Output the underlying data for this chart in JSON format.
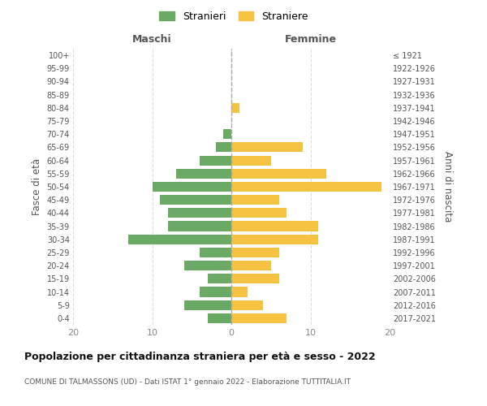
{
  "age_groups": [
    "0-4",
    "5-9",
    "10-14",
    "15-19",
    "20-24",
    "25-29",
    "30-34",
    "35-39",
    "40-44",
    "45-49",
    "50-54",
    "55-59",
    "60-64",
    "65-69",
    "70-74",
    "75-79",
    "80-84",
    "85-89",
    "90-94",
    "95-99",
    "100+"
  ],
  "birth_years": [
    "2017-2021",
    "2012-2016",
    "2007-2011",
    "2002-2006",
    "1997-2001",
    "1992-1996",
    "1987-1991",
    "1982-1986",
    "1977-1981",
    "1972-1976",
    "1967-1971",
    "1962-1966",
    "1957-1961",
    "1952-1956",
    "1947-1951",
    "1942-1946",
    "1937-1941",
    "1932-1936",
    "1927-1931",
    "1922-1926",
    "≤ 1921"
  ],
  "males": [
    3,
    6,
    4,
    3,
    6,
    4,
    13,
    8,
    8,
    9,
    10,
    7,
    4,
    2,
    1,
    0,
    0,
    0,
    0,
    0,
    0
  ],
  "females": [
    7,
    4,
    2,
    6,
    5,
    6,
    11,
    11,
    7,
    6,
    19,
    12,
    5,
    9,
    0,
    0,
    1,
    0,
    0,
    0,
    0
  ],
  "male_color": "#6aaa64",
  "female_color": "#f5c242",
  "title": "Popolazione per cittadinanza straniera per età e sesso - 2022",
  "subtitle": "COMUNE DI TALMASSONS (UD) - Dati ISTAT 1° gennaio 2022 - Elaborazione TUTTITALIA.IT",
  "xlabel_left": "Maschi",
  "xlabel_right": "Femmine",
  "ylabel_left": "Fasce di età",
  "ylabel_right": "Anni di nascita",
  "legend_stranieri": "Stranieri",
  "legend_straniere": "Straniere",
  "xlim": 20,
  "background_color": "#ffffff",
  "grid_color": "#dddddd",
  "tick_color": "#888888",
  "label_color": "#555555",
  "header_color": "#555555"
}
